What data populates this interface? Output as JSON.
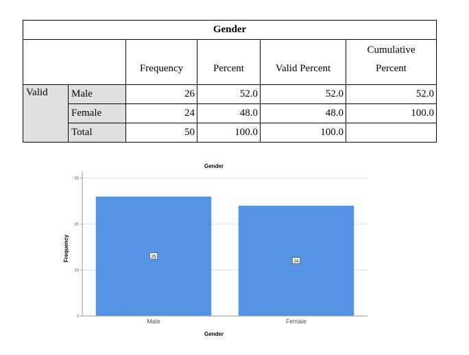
{
  "table": {
    "title": "Gender",
    "headers": [
      "Frequency",
      "Percent",
      "Valid Percent",
      "Cumulative",
      "Percent"
    ],
    "group_label": "Valid",
    "rows": [
      {
        "label": "Male",
        "frequency": "26",
        "percent": "52.0",
        "valid_percent": "52.0",
        "cumulative": "52.0"
      },
      {
        "label": "Female",
        "frequency": "24",
        "percent": "48.0",
        "valid_percent": "48.0",
        "cumulative": "100.0"
      },
      {
        "label": "Total",
        "frequency": "50",
        "percent": "100.0",
        "valid_percent": "100.0",
        "cumulative": ""
      }
    ]
  },
  "chart_data": {
    "type": "bar",
    "title": "Gender",
    "xlabel": "Gender",
    "ylabel": "Frequency",
    "categories": [
      "Male",
      "Female"
    ],
    "values": [
      26,
      24
    ],
    "data_labels": [
      "26",
      "24"
    ],
    "ylim": [
      0,
      30
    ],
    "yticks": [
      0,
      10,
      20,
      30
    ],
    "grid": true,
    "bar_color": "#5394e5"
  }
}
